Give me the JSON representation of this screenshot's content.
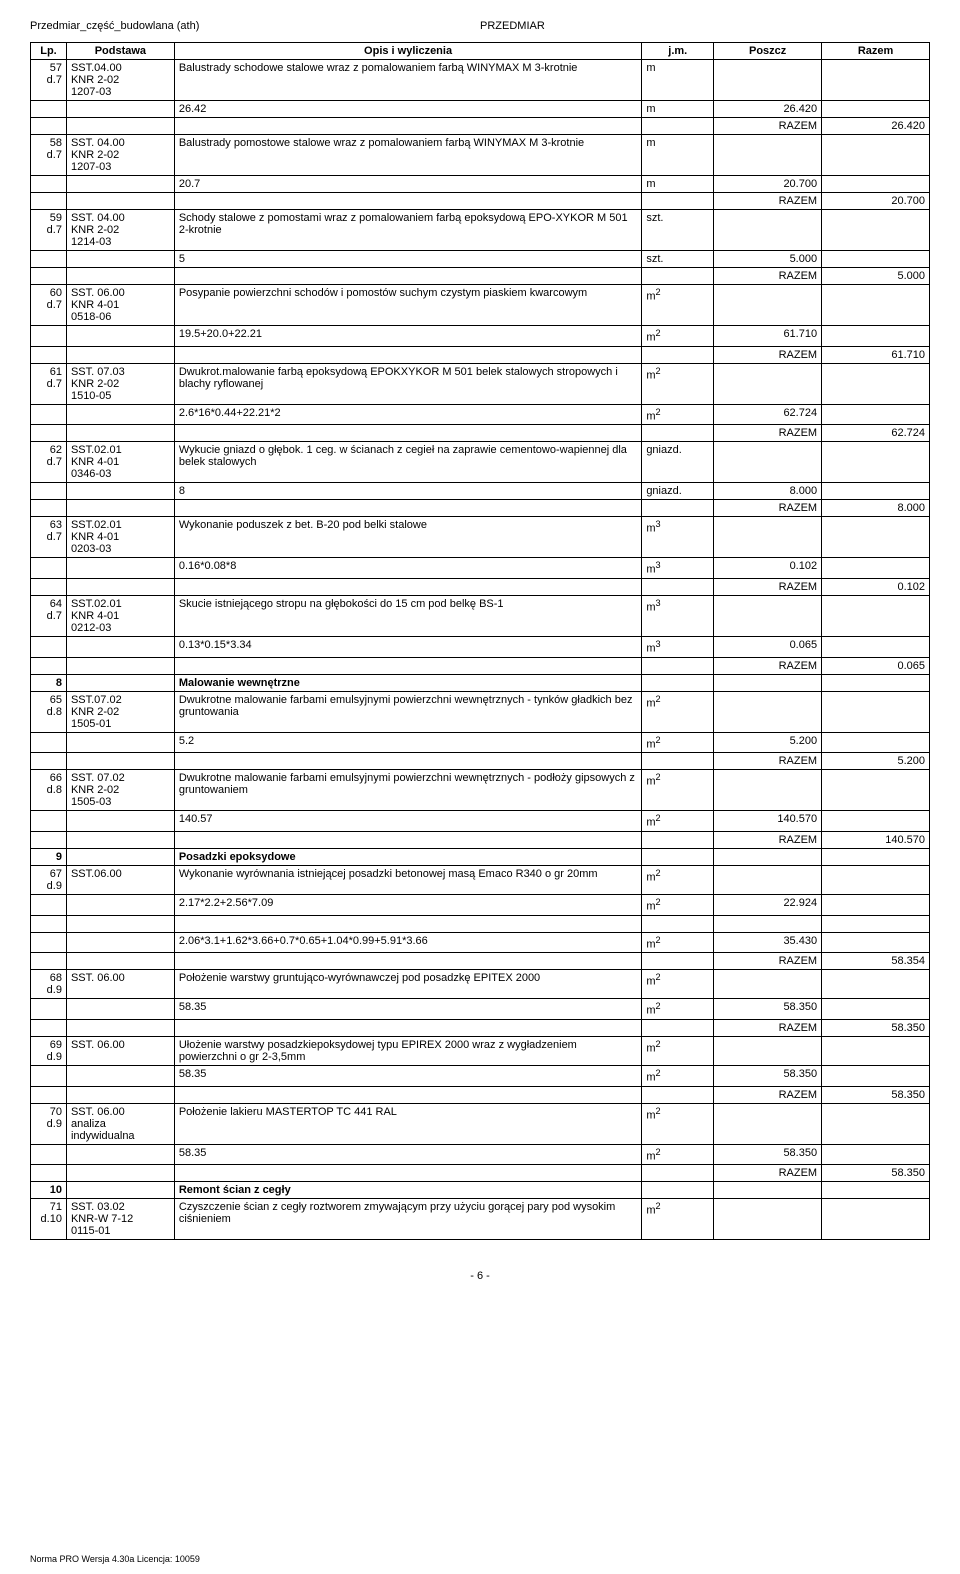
{
  "header": {
    "left": "Przedmiar_część_budowlana (ath)",
    "right": "PRZEDMIAR"
  },
  "columns": [
    "Lp.",
    "Podstawa",
    "Opis i wyliczenia",
    "j.m.",
    "Poszcz",
    "Razem"
  ],
  "rows": [
    {
      "lp": "57",
      "sublp": "d.7",
      "pod1": "SST.04.00",
      "pod2": "KNR 2-02",
      "pod3": "1207-03",
      "opis": "Balustrady schodowe  stalowe wraz z pomalowaniem farbą WINYMAX M 3-krotnie",
      "jm": "m",
      "calc": "26.42",
      "calc_jm": "m",
      "poszcz": "26.420",
      "razem": "26.420",
      "razem_lbl": "RAZEM"
    },
    {
      "lp": "58",
      "sublp": "d.7",
      "pod1": "SST. 04.00",
      "pod2": "KNR 2-02",
      "pod3": "1207-03",
      "opis": "Balustrady pomostowe  stalowe wraz z pomalowaniem farbą WINYMAX M 3-krotnie",
      "jm": "m",
      "calc": "20.7",
      "calc_jm": "m",
      "poszcz": "20.700",
      "razem": "20.700",
      "razem_lbl": "RAZEM"
    },
    {
      "lp": "59",
      "sublp": "d.7",
      "pod1": "SST. 04.00",
      "pod2": "KNR 2-02",
      "pod3": "1214-03",
      "opis": "Schody stalowe  z pomostami wraz z pomalowaniem farbą epoksydową EPO-XYKOR M 501 2-krotnie",
      "jm": "szt.",
      "calc": "5",
      "calc_jm": "szt.",
      "poszcz": "5.000",
      "razem": "5.000",
      "razem_lbl": "RAZEM"
    },
    {
      "lp": "60",
      "sublp": "d.7",
      "pod1": " SST. 06.00",
      "pod2": "KNR 4-01",
      "pod3": "0518-06",
      "opis": "Posypanie powierzchni schodów i pomostów suchym czystym piaskiem kwarcowym",
      "jm": "m2",
      "calc": "19.5+20.0+22.21",
      "calc_jm": "m2",
      "poszcz": "61.710",
      "razem": "61.710",
      "razem_lbl": "RAZEM"
    },
    {
      "lp": "61",
      "sublp": "d.7",
      "pod1": "SST. 07.03",
      "pod2": "KNR 2-02",
      "pod3": "1510-05",
      "opis": "Dwukrot.malowanie farbą epoksydową EPOKXYKOR M 501 belek stalowych stropowych i blachy ryflowanej",
      "jm": "m2",
      "calc": "2.6*16*0.44+22.21*2",
      "calc_jm": "m2",
      "poszcz": "62.724",
      "razem": "62.724",
      "razem_lbl": "RAZEM"
    },
    {
      "lp": "62",
      "sublp": "d.7",
      "pod1": " SST.02.01",
      "pod2": "KNR 4-01",
      "pod3": "0346-03",
      "opis": "Wykucie gniazd o głębok. 1 ceg. w ścianach z cegieł na zaprawie cementowo-wapiennej dla belek stalowych",
      "jm": "gniazd.",
      "calc": "8",
      "calc_jm": "gniazd.",
      "poszcz": "8.000",
      "razem": "8.000",
      "razem_lbl": "RAZEM"
    },
    {
      "lp": "63",
      "sublp": "d.7",
      "pod1": "SST.02.01",
      "pod2": "KNR 4-01",
      "pod3": "0203-03",
      "opis": "Wykonanie poduszek z bet. B-20 pod belki stalowe",
      "jm": "m3",
      "calc": "0.16*0.08*8",
      "calc_jm": "m3",
      "poszcz": "0.102",
      "razem": "0.102",
      "razem_lbl": "RAZEM"
    },
    {
      "lp": "64",
      "sublp": "d.7",
      "pod1": "SST.02.01",
      "pod2": "KNR 4-01",
      "pod3": "0212-03",
      "opis": "Skucie istniejącego stropu na głębokości do 15 cm pod belkę BS-1",
      "jm": "m3",
      "calc": "0.13*0.15*3.34",
      "calc_jm": "m3",
      "poszcz": "0.065",
      "razem": "0.065",
      "razem_lbl": "RAZEM"
    }
  ],
  "section8": {
    "lp": "8",
    "title": "Malowanie wewnętrzne"
  },
  "rows2": [
    {
      "lp": "65",
      "sublp": "d.8",
      "pod1": "SST.07.02",
      "pod2": "KNR 2-02",
      "pod3": "1505-01",
      "opis": "Dwukrotne malowanie farbami emulsyjnymi powierzchni wewnętrznych - tynków gładkich bez gruntowania",
      "jm": "m2",
      "calc": "5.2",
      "calc_jm": "m2",
      "poszcz": "5.200",
      "razem": "5.200",
      "razem_lbl": "RAZEM"
    },
    {
      "lp": "66",
      "sublp": "d.8",
      "pod1": "SST. 07.02",
      "pod2": "KNR 2-02",
      "pod3": "1505-03",
      "opis": "Dwukrotne malowanie farbami emulsyjnymi powierzchni wewnętrznych - podłoży gipsowych z gruntowaniem",
      "jm": "m2",
      "calc": "140.57",
      "calc_jm": "m2",
      "poszcz": "140.570",
      "razem": "140.570",
      "razem_lbl": "RAZEM"
    }
  ],
  "section9": {
    "lp": "9",
    "title": "Posadzki epoksydowe"
  },
  "row67": {
    "lp": "67",
    "sublp": "d.9",
    "pod1": "SST.06.00",
    "opis": "Wykonanie wyrównania istniejącej posadzki betonowej masą Emaco R340 o gr 20mm",
    "jm": "m2",
    "calc1": "2.17*2.2+2.56*7.09",
    "calc1_jm": "m2",
    "poszcz1": "22.924",
    "calc2": "2.06*3.1+1.62*3.66+0.7*0.65+1.04*0.99+5.91*3.66",
    "calc2_jm": "m2",
    "poszcz2": "35.430",
    "razem": "58.354",
    "razem_lbl": "RAZEM"
  },
  "rows3": [
    {
      "lp": "68",
      "sublp": "d.9",
      "pod1": "SST. 06.00",
      "opis": "Położenie warstwy gruntująco-wyrównawczej pod posadzkę EPITEX 2000",
      "jm": "m2",
      "calc": "58.35",
      "calc_jm": "m2",
      "poszcz": "58.350",
      "razem": "58.350",
      "razem_lbl": "RAZEM"
    },
    {
      "lp": "69",
      "sublp": "d.9",
      "pod1": "SST. 06.00",
      "opis": "Ułożenie warstwy posadzkiepoksydowej typu EPIREX 2000 wraz z wygładzeniem powierzchni o gr 2-3,5mm",
      "jm": "m2",
      "calc": "58.35",
      "calc_jm": "m2",
      "poszcz": "58.350",
      "razem": "58.350",
      "razem_lbl": "RAZEM"
    },
    {
      "lp": "70",
      "sublp": "d.9",
      "pod1": "SST. 06.00",
      "pod2": "analiza indywidualna",
      "opis": "Położenie lakieru MASTERTOP TC 441 RAL",
      "jm": "m2",
      "calc": "58.35",
      "calc_jm": "m2",
      "poszcz": "58.350",
      "razem": "58.350",
      "razem_lbl": "RAZEM"
    }
  ],
  "section10": {
    "lp": "10",
    "title": "Remont ścian z cegły"
  },
  "row71": {
    "lp": "71",
    "sublp": "d.10",
    "pod1": "SST. 03.02",
    "pod2": "KNR-W 7-12",
    "pod3": "0115-01",
    "opis": "Czyszczenie ścian z cegły  roztworem zmywającym przy użyciu gorącej pary pod wysokim ciśnieniem",
    "jm": "m2"
  },
  "page_num": "- 6 -",
  "footer": "Norma PRO Wersja 4.30a Licencja: 10059"
}
